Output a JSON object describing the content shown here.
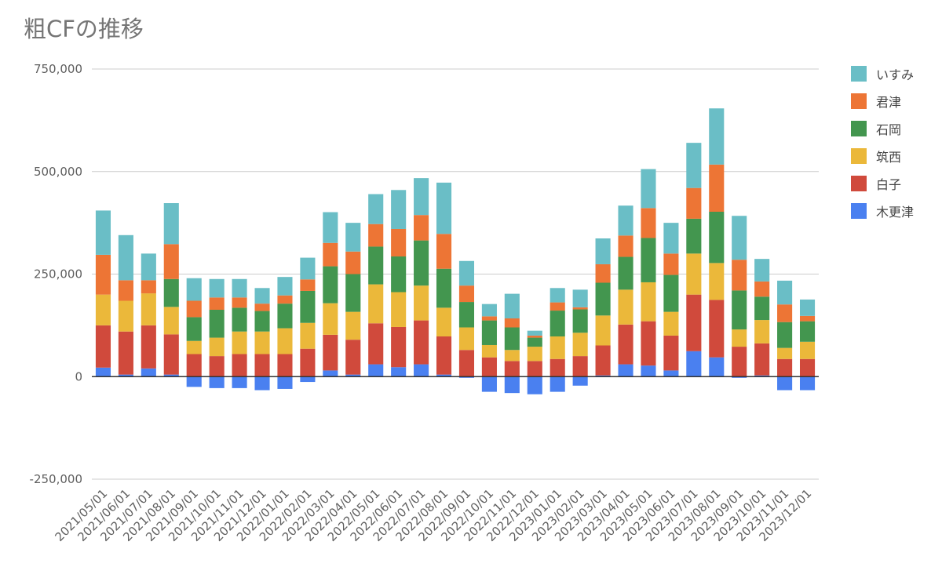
{
  "chart_data": {
    "type": "bar",
    "stacked": true,
    "title": "粗CFの推移",
    "xlabel": "",
    "ylabel": "",
    "ylim": [
      -250000,
      750000
    ],
    "y_ticks": [
      {
        "value": 750000,
        "label": "750,000"
      },
      {
        "value": 500000,
        "label": "500,000"
      },
      {
        "value": 250000,
        "label": "250,000"
      },
      {
        "value": 0,
        "label": "0"
      },
      {
        "value": -250000,
        "label": "-250,000"
      }
    ],
    "grid": true,
    "legend_position": "right",
    "categories": [
      "2021/05/01",
      "2021/06/01",
      "2021/07/01",
      "2021/08/01",
      "2021/09/01",
      "2021/10/01",
      "2021/11/01",
      "2021/12/01",
      "2022/01/01",
      "2022/02/01",
      "2022/03/01",
      "2022/04/01",
      "2022/05/01",
      "2022/06/01",
      "2022/07/01",
      "2022/08/01",
      "2022/09/01",
      "2022/10/01",
      "2022/11/01",
      "2022/12/01",
      "2023/01/01",
      "2023/02/01",
      "2023/03/01",
      "2023/04/01",
      "2023/05/01",
      "2023/06/01",
      "2023/07/01",
      "2023/08/01",
      "2023/09/01",
      "2023/10/01",
      "2023/11/01",
      "2023/12/01"
    ],
    "series": [
      {
        "name": "木更津",
        "color": "#4a80f0",
        "values": [
          22000,
          5000,
          20000,
          5000,
          -25000,
          -28000,
          -28000,
          -33000,
          -30000,
          -13000,
          15000,
          5000,
          30000,
          23000,
          30000,
          5000,
          -3000,
          -37000,
          -40000,
          -43000,
          -37000,
          -22000,
          3000,
          30000,
          27000,
          15000,
          62000,
          47000,
          -3000,
          3000,
          -33000,
          -33000
        ]
      },
      {
        "name": "白子",
        "color": "#d04a3c",
        "values": [
          103000,
          105000,
          105000,
          98000,
          55000,
          50000,
          55000,
          55000,
          55000,
          68000,
          87000,
          85000,
          100000,
          98000,
          107000,
          93000,
          65000,
          47000,
          38000,
          38000,
          43000,
          50000,
          73000,
          97000,
          108000,
          85000,
          138000,
          140000,
          73000,
          78000,
          43000,
          43000
        ]
      },
      {
        "name": "筑西",
        "color": "#ebb83a",
        "values": [
          75000,
          75000,
          78000,
          67000,
          32000,
          45000,
          55000,
          55000,
          63000,
          63000,
          77000,
          68000,
          95000,
          85000,
          85000,
          70000,
          55000,
          30000,
          27000,
          35000,
          55000,
          57000,
          73000,
          85000,
          95000,
          58000,
          100000,
          90000,
          42000,
          57000,
          27000,
          42000
        ]
      },
      {
        "name": "石岡",
        "color": "#43964f",
        "values": [
          0,
          0,
          0,
          68000,
          58000,
          68000,
          58000,
          50000,
          60000,
          78000,
          90000,
          92000,
          92000,
          87000,
          110000,
          95000,
          62000,
          60000,
          55000,
          22000,
          63000,
          57000,
          80000,
          80000,
          108000,
          90000,
          85000,
          125000,
          95000,
          57000,
          63000,
          50000
        ]
      },
      {
        "name": "君津",
        "color": "#ed7535",
        "values": [
          97000,
          50000,
          32000,
          85000,
          40000,
          30000,
          25000,
          18000,
          20000,
          28000,
          57000,
          55000,
          55000,
          67000,
          62000,
          85000,
          40000,
          10000,
          22000,
          5000,
          20000,
          5000,
          45000,
          52000,
          73000,
          52000,
          75000,
          115000,
          75000,
          37000,
          43000,
          13000
        ]
      },
      {
        "name": "いすみ",
        "color": "#6abec6",
        "values": [
          108000,
          110000,
          65000,
          100000,
          55000,
          45000,
          45000,
          38000,
          45000,
          53000,
          75000,
          70000,
          73000,
          95000,
          90000,
          125000,
          60000,
          30000,
          60000,
          12000,
          35000,
          43000,
          63000,
          73000,
          95000,
          75000,
          110000,
          137000,
          107000,
          55000,
          58000,
          40000
        ]
      }
    ]
  }
}
